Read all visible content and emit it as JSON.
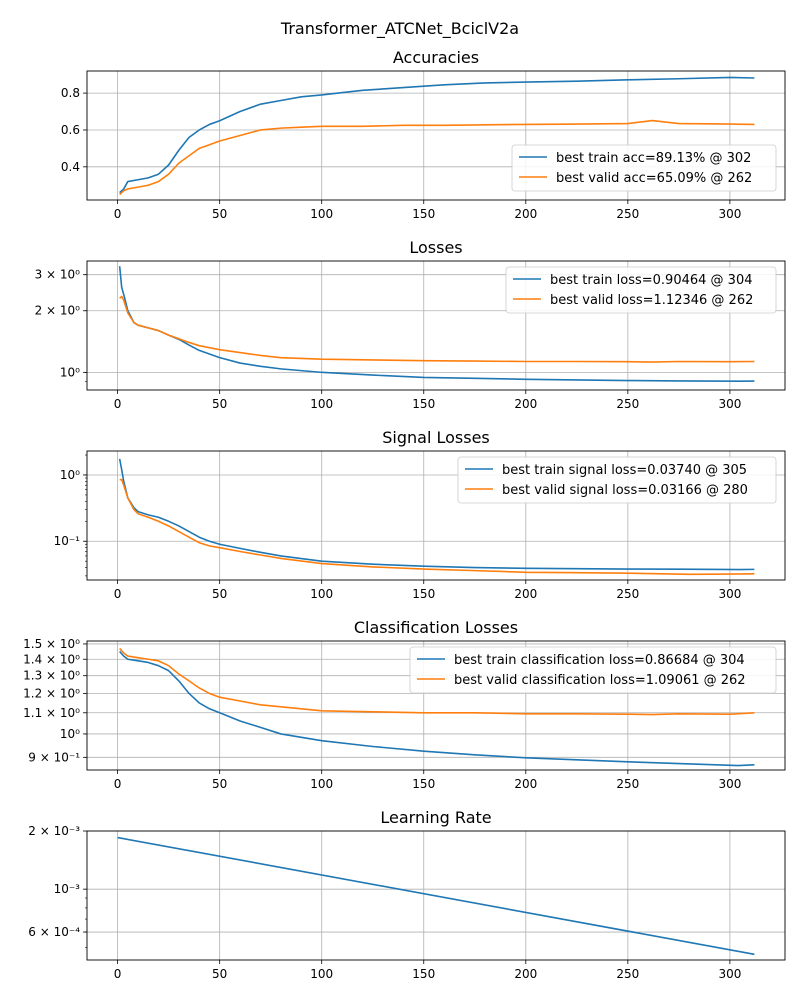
{
  "figure": {
    "suptitle": "Transformer_ATCNet_BciclV2a"
  },
  "colors": {
    "train": "#1f77b4",
    "valid": "#ff7f0e",
    "grid": "#b0b0b0",
    "axis": "#000000"
  },
  "chart_data": [
    {
      "type": "line",
      "title": "Accuracies",
      "yscale": "linear",
      "xlim": [
        -15,
        327
      ],
      "ylim": [
        0.22,
        0.92
      ],
      "xticks": [
        0,
        50,
        100,
        150,
        200,
        250,
        300
      ],
      "yticks": [
        {
          "value": 0.4,
          "label": "0.4"
        },
        {
          "value": 0.6,
          "label": "0.6"
        },
        {
          "value": 0.8,
          "label": "0.8"
        }
      ],
      "grid": true,
      "legend_position": "lower-right",
      "series": [
        {
          "name": "best train acc=89.13% @ 302",
          "color": "train",
          "x": [
            1,
            3,
            5,
            10,
            15,
            20,
            25,
            30,
            35,
            40,
            45,
            50,
            60,
            70,
            80,
            90,
            100,
            120,
            140,
            160,
            180,
            200,
            225,
            250,
            275,
            300,
            312
          ],
          "y": [
            0.26,
            0.28,
            0.32,
            0.33,
            0.34,
            0.36,
            0.41,
            0.49,
            0.56,
            0.6,
            0.63,
            0.65,
            0.7,
            0.74,
            0.76,
            0.78,
            0.79,
            0.815,
            0.83,
            0.845,
            0.855,
            0.86,
            0.865,
            0.872,
            0.878,
            0.885,
            0.882
          ]
        },
        {
          "name": "best valid acc=65.09% @ 262",
          "color": "valid",
          "x": [
            1,
            3,
            5,
            10,
            15,
            20,
            25,
            30,
            35,
            40,
            45,
            50,
            60,
            70,
            80,
            90,
            100,
            120,
            140,
            160,
            180,
            200,
            225,
            250,
            262,
            275,
            300,
            312
          ],
          "y": [
            0.25,
            0.27,
            0.28,
            0.29,
            0.3,
            0.32,
            0.36,
            0.42,
            0.46,
            0.5,
            0.52,
            0.54,
            0.57,
            0.6,
            0.61,
            0.615,
            0.62,
            0.62,
            0.625,
            0.625,
            0.628,
            0.63,
            0.632,
            0.635,
            0.651,
            0.635,
            0.632,
            0.63
          ]
        }
      ]
    },
    {
      "type": "line",
      "title": "Losses",
      "yscale": "log",
      "xlim": [
        -15,
        327
      ],
      "ylim": [
        0.82,
        3.5
      ],
      "xticks": [
        0,
        50,
        100,
        150,
        200,
        250,
        300
      ],
      "yticks": [
        {
          "value": 1,
          "label": "10⁰"
        },
        {
          "value": 2,
          "label": "2 × 10⁰"
        },
        {
          "value": 3,
          "label": "3 × 10⁰"
        }
      ],
      "grid": true,
      "legend_position": "upper-right",
      "series": [
        {
          "name": "best train loss=0.90464 @ 304",
          "color": "train",
          "x": [
            1,
            2,
            3,
            5,
            8,
            10,
            15,
            20,
            25,
            30,
            35,
            40,
            50,
            60,
            70,
            80,
            100,
            125,
            150,
            175,
            200,
            225,
            250,
            275,
            304,
            312
          ],
          "y": [
            3.3,
            2.6,
            2.4,
            2.0,
            1.75,
            1.7,
            1.65,
            1.6,
            1.52,
            1.45,
            1.36,
            1.28,
            1.18,
            1.11,
            1.07,
            1.04,
            1.0,
            0.97,
            0.945,
            0.935,
            0.925,
            0.918,
            0.912,
            0.908,
            0.905,
            0.907
          ]
        },
        {
          "name": "best valid loss=1.12346 @ 262",
          "color": "valid",
          "x": [
            1,
            2,
            3,
            5,
            8,
            10,
            15,
            20,
            25,
            30,
            35,
            40,
            50,
            60,
            70,
            80,
            100,
            125,
            150,
            175,
            200,
            225,
            250,
            262,
            275,
            300,
            312
          ],
          "y": [
            2.3,
            2.35,
            2.25,
            1.95,
            1.75,
            1.7,
            1.65,
            1.6,
            1.52,
            1.46,
            1.4,
            1.35,
            1.29,
            1.25,
            1.21,
            1.18,
            1.16,
            1.15,
            1.14,
            1.135,
            1.13,
            1.13,
            1.128,
            1.123,
            1.13,
            1.128,
            1.13
          ]
        }
      ]
    },
    {
      "type": "line",
      "title": "Signal Losses",
      "yscale": "log",
      "xlim": [
        -15,
        327
      ],
      "ylim": [
        0.026,
        2.3
      ],
      "xticks": [
        0,
        50,
        100,
        150,
        200,
        250,
        300
      ],
      "yticks": [
        {
          "value": 0.1,
          "label": "10⁻¹"
        },
        {
          "value": 1,
          "label": "10⁰"
        }
      ],
      "grid": true,
      "legend_position": "upper-right",
      "series": [
        {
          "name": "best train signal loss=0.03740 @ 305",
          "color": "train",
          "x": [
            1,
            2,
            3,
            5,
            8,
            10,
            15,
            20,
            25,
            30,
            35,
            40,
            45,
            50,
            60,
            70,
            80,
            100,
            125,
            150,
            175,
            200,
            225,
            250,
            275,
            305,
            312
          ],
          "y": [
            1.75,
            1.2,
            0.8,
            0.45,
            0.32,
            0.28,
            0.25,
            0.23,
            0.2,
            0.17,
            0.14,
            0.115,
            0.1,
            0.09,
            0.078,
            0.068,
            0.06,
            0.05,
            0.045,
            0.042,
            0.04,
            0.039,
            0.0385,
            0.038,
            0.0378,
            0.0374,
            0.0376
          ]
        },
        {
          "name": "best valid signal loss=0.03166 @ 280",
          "color": "valid",
          "x": [
            1,
            2,
            3,
            5,
            8,
            10,
            15,
            20,
            25,
            30,
            35,
            40,
            45,
            50,
            60,
            70,
            80,
            100,
            125,
            150,
            175,
            200,
            225,
            250,
            280,
            300,
            312
          ],
          "y": [
            0.85,
            0.85,
            0.7,
            0.45,
            0.3,
            0.26,
            0.23,
            0.2,
            0.17,
            0.14,
            0.115,
            0.095,
            0.085,
            0.08,
            0.07,
            0.062,
            0.055,
            0.046,
            0.041,
            0.038,
            0.036,
            0.034,
            0.0335,
            0.033,
            0.0317,
            0.032,
            0.0322
          ]
        }
      ]
    },
    {
      "type": "line",
      "title": "Classification Losses",
      "yscale": "log",
      "xlim": [
        -15,
        327
      ],
      "ylim": [
        0.85,
        1.52
      ],
      "xticks": [
        0,
        50,
        100,
        150,
        200,
        250,
        300
      ],
      "yticks": [
        {
          "value": 0.9,
          "label": "9 × 10⁻¹"
        },
        {
          "value": 1.0,
          "label": "10⁰"
        },
        {
          "value": 1.1,
          "label": "1.1 × 10⁰"
        },
        {
          "value": 1.2,
          "label": "1.2 × 10⁰"
        },
        {
          "value": 1.3,
          "label": "1.3 × 10⁰"
        },
        {
          "value": 1.4,
          "label": "1.4 × 10⁰"
        },
        {
          "value": 1.5,
          "label": "1.5 × 10⁰"
        }
      ],
      "grid": true,
      "legend_position": "upper-right",
      "series": [
        {
          "name": "best train classification loss=0.86684 @ 304",
          "color": "train",
          "x": [
            1,
            3,
            5,
            10,
            15,
            20,
            25,
            30,
            35,
            40,
            45,
            50,
            60,
            70,
            80,
            90,
            100,
            125,
            150,
            175,
            200,
            225,
            250,
            275,
            304,
            312
          ],
          "y": [
            1.45,
            1.42,
            1.4,
            1.39,
            1.38,
            1.36,
            1.33,
            1.27,
            1.2,
            1.15,
            1.12,
            1.1,
            1.06,
            1.03,
            1.0,
            0.985,
            0.97,
            0.945,
            0.925,
            0.91,
            0.898,
            0.89,
            0.882,
            0.875,
            0.867,
            0.87
          ]
        },
        {
          "name": "best valid classification loss=1.09061 @ 262",
          "color": "valid",
          "x": [
            1,
            3,
            5,
            10,
            15,
            20,
            25,
            30,
            35,
            40,
            45,
            50,
            60,
            70,
            80,
            90,
            100,
            125,
            150,
            175,
            200,
            225,
            250,
            262,
            275,
            300,
            312
          ],
          "y": [
            1.47,
            1.44,
            1.42,
            1.41,
            1.4,
            1.39,
            1.36,
            1.31,
            1.27,
            1.23,
            1.2,
            1.18,
            1.16,
            1.14,
            1.13,
            1.12,
            1.11,
            1.105,
            1.1,
            1.1,
            1.095,
            1.095,
            1.093,
            1.091,
            1.095,
            1.093,
            1.1
          ]
        }
      ]
    },
    {
      "type": "line",
      "title": "Learning Rate",
      "yscale": "log",
      "xlim": [
        -15,
        327
      ],
      "ylim": [
        0.00043,
        0.002
      ],
      "xticks": [
        0,
        50,
        100,
        150,
        200,
        250,
        300
      ],
      "yticks": [
        {
          "value": 0.0006,
          "label": "6 × 10⁻⁴"
        },
        {
          "value": 0.001,
          "label": "10⁻³"
        },
        {
          "value": 0.002,
          "label": "2 × 10⁻³"
        }
      ],
      "grid": true,
      "legend_position": "none",
      "series": [
        {
          "color": "train",
          "x": [
            0,
            312
          ],
          "y": [
            0.00185,
            0.00046
          ]
        }
      ]
    }
  ]
}
